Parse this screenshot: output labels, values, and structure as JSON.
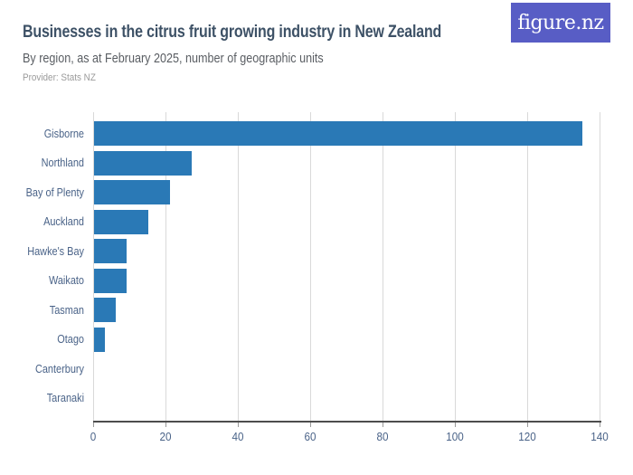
{
  "header": {
    "title": "Businesses in the citrus fruit growing industry in New Zealand",
    "subtitle": "By region, as at February 2025, number of geographic units",
    "provider": "Provider: Stats NZ",
    "logo_text": "figure.nz"
  },
  "colors": {
    "bar": "#2a79b6",
    "logo_background": "#585dc5",
    "title_text": "#3d5166",
    "subtitle_text": "#5a5e63",
    "provider_text": "#9b9b9b",
    "axis_label": "#4a6388",
    "gridline": "#d9d9d9",
    "axis_line": "#4d4d4d",
    "tick_mark": "#999999"
  },
  "chart_data": {
    "type": "bar",
    "orientation": "horizontal",
    "title": "Businesses in the citrus fruit growing industry in New Zealand",
    "subtitle": "By region, as at February 2025, number of geographic units",
    "source": "Provider: Stats NZ",
    "categories": [
      "Gisborne",
      "Northland",
      "Bay of Plenty",
      "Auckland",
      "Hawke's Bay",
      "Waikato",
      "Tasman",
      "Otago",
      "Canterbury",
      "Taranaki"
    ],
    "values": [
      135,
      27,
      21,
      15,
      9,
      9,
      6,
      3,
      0,
      0
    ],
    "xlabel": "",
    "ylabel": "",
    "xlim": [
      0,
      140
    ],
    "xticks": [
      0,
      20,
      40,
      60,
      80,
      100,
      120,
      140
    ],
    "grid": true,
    "legend": false
  }
}
